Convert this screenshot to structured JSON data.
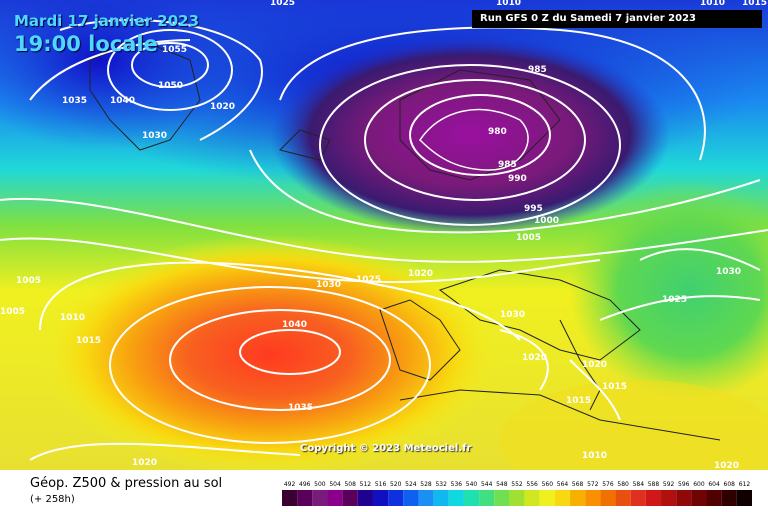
{
  "header": {
    "date": "Mardi 17 janvier 2023",
    "time": "19:00 locale",
    "run": "Run GFS 0 Z du Samedi 7 janvier 2023"
  },
  "copyright": "Copyright © 2023 Meteociel.fr",
  "footer": {
    "title": "Géop. Z500 & pression au sol",
    "subtitle": "(+ 258h)"
  },
  "legend": {
    "values": [
      "492",
      "496",
      "500",
      "504",
      "508",
      "512",
      "516",
      "520",
      "524",
      "528",
      "532",
      "536",
      "540",
      "544",
      "548",
      "552",
      "556",
      "560",
      "564",
      "568",
      "572",
      "576",
      "580",
      "584",
      "588",
      "592",
      "596",
      "600",
      "604",
      "608",
      "612"
    ],
    "colors": [
      "#3a0030",
      "#5a005a",
      "#7a1a7a",
      "#8a008a",
      "#5a005a",
      "#200090",
      "#1010c0",
      "#1030e0",
      "#1060f0",
      "#1a90f5",
      "#10b8f0",
      "#10d8e0",
      "#20e0b0",
      "#40e080",
      "#70e050",
      "#a0e030",
      "#d0e820",
      "#f0f020",
      "#f8d810",
      "#f8b000",
      "#f89000",
      "#f07000",
      "#e85010",
      "#e03020",
      "#d01818",
      "#b01010",
      "#900808",
      "#700404",
      "#500000",
      "#300000",
      "#100000"
    ],
    "title": "Géop. Z500"
  },
  "isobars": [
    {
      "label": "1055"
    },
    {
      "label": "1050"
    },
    {
      "label": "1040"
    },
    {
      "label": "1035"
    },
    {
      "label": "1020"
    },
    {
      "label": "1030"
    },
    {
      "label": "1025"
    },
    {
      "label": "1005"
    },
    {
      "label": "1010"
    },
    {
      "label": "1015"
    },
    {
      "label": "985"
    },
    {
      "label": "980"
    },
    {
      "label": "985"
    },
    {
      "label": "990"
    },
    {
      "label": "995"
    },
    {
      "label": "1000"
    },
    {
      "label": "1005"
    },
    {
      "label": "1020"
    },
    {
      "label": "1030"
    },
    {
      "label": "1025"
    },
    {
      "label": "1030"
    },
    {
      "label": "1025"
    },
    {
      "label": "1030"
    },
    {
      "label": "1040"
    },
    {
      "label": "1035"
    },
    {
      "label": "1020"
    },
    {
      "label": "1020"
    },
    {
      "label": "1020"
    },
    {
      "label": "1015"
    },
    {
      "label": "1015"
    },
    {
      "label": "1010"
    },
    {
      "label": "1020"
    },
    {
      "label": "1010"
    },
    {
      "label": "1005"
    },
    {
      "label": "1015"
    },
    {
      "label": "1010"
    }
  ]
}
